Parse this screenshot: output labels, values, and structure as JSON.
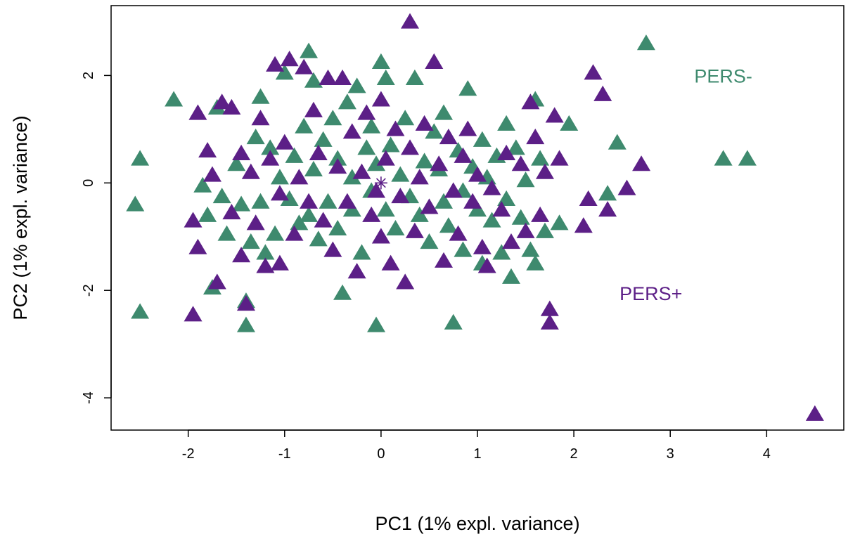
{
  "chart_data": {
    "type": "scatter",
    "xlabel": "PC1 (1% expl. variance)",
    "ylabel": "PC2 (1% expl. variance)",
    "xlim": [
      -2.8,
      4.8
    ],
    "ylim": [
      -4.6,
      3.3
    ],
    "xticks": [
      -2,
      -1,
      0,
      1,
      2,
      3,
      4
    ],
    "yticks": [
      -4,
      -2,
      0,
      2
    ],
    "grid": false,
    "legend": "none",
    "colors": {
      "pers_minus": "#3e8a6e",
      "pers_plus": "#5c1f87"
    },
    "annotations": [
      {
        "text": "PERS-",
        "x": 3.55,
        "y": 2.0,
        "color": "#3e8a6e"
      },
      {
        "text": "PERS+",
        "x": 2.8,
        "y": -2.05,
        "color": "#5c1f87"
      }
    ],
    "centroid": {
      "x": 0.0,
      "y": 0.0,
      "color": "#5c1f87"
    },
    "series": [
      {
        "color": "#3e8a6e",
        "marker": "triangle",
        "points": [
          [
            -2.55,
            -0.4
          ],
          [
            -2.5,
            0.45
          ],
          [
            -2.5,
            -2.4
          ],
          [
            -2.15,
            1.55
          ],
          [
            -1.85,
            -0.05
          ],
          [
            -1.8,
            -0.6
          ],
          [
            -1.75,
            -1.95
          ],
          [
            -1.7,
            1.4
          ],
          [
            -1.65,
            -0.25
          ],
          [
            -1.6,
            -0.95
          ],
          [
            -1.5,
            0.35
          ],
          [
            -1.45,
            -0.4
          ],
          [
            -1.4,
            -2.2
          ],
          [
            -1.4,
            -2.65
          ],
          [
            -1.35,
            -1.1
          ],
          [
            -1.3,
            0.85
          ],
          [
            -1.25,
            1.6
          ],
          [
            -1.25,
            -0.35
          ],
          [
            -1.2,
            -1.3
          ],
          [
            -1.15,
            0.65
          ],
          [
            -1.1,
            -0.95
          ],
          [
            -1.05,
            0.1
          ],
          [
            -1.0,
            2.05
          ],
          [
            -0.95,
            -0.3
          ],
          [
            -0.9,
            0.5
          ],
          [
            -0.85,
            -0.75
          ],
          [
            -0.8,
            1.05
          ],
          [
            -0.75,
            2.45
          ],
          [
            -0.75,
            -0.6
          ],
          [
            -0.7,
            0.25
          ],
          [
            -0.7,
            1.9
          ],
          [
            -0.65,
            -1.05
          ],
          [
            -0.6,
            0.8
          ],
          [
            -0.55,
            -0.35
          ],
          [
            -0.5,
            1.2
          ],
          [
            -0.45,
            -0.85
          ],
          [
            -0.45,
            0.45
          ],
          [
            -0.4,
            -2.05
          ],
          [
            -0.35,
            1.5
          ],
          [
            -0.3,
            -0.5
          ],
          [
            -0.3,
            0.1
          ],
          [
            -0.25,
            1.8
          ],
          [
            -0.2,
            -1.3
          ],
          [
            -0.15,
            0.65
          ],
          [
            -0.1,
            -0.15
          ],
          [
            -0.1,
            1.05
          ],
          [
            -0.05,
            0.35
          ],
          [
            0.0,
            2.25
          ],
          [
            -0.05,
            -2.65
          ],
          [
            0.05,
            -0.5
          ],
          [
            0.05,
            1.95
          ],
          [
            0.1,
            0.7
          ],
          [
            0.15,
            -0.85
          ],
          [
            0.2,
            0.15
          ],
          [
            0.25,
            1.2
          ],
          [
            0.3,
            -0.25
          ],
          [
            0.35,
            1.95
          ],
          [
            0.4,
            -0.6
          ],
          [
            0.45,
            0.4
          ],
          [
            0.5,
            -1.1
          ],
          [
            0.55,
            0.95
          ],
          [
            0.6,
            0.25
          ],
          [
            0.65,
            -0.35
          ],
          [
            0.65,
            1.3
          ],
          [
            0.7,
            -0.8
          ],
          [
            0.75,
            -2.6
          ],
          [
            0.8,
            0.6
          ],
          [
            0.85,
            -0.15
          ],
          [
            0.85,
            -1.25
          ],
          [
            0.9,
            1.75
          ],
          [
            0.95,
            0.3
          ],
          [
            1.0,
            -0.5
          ],
          [
            1.05,
            -1.5
          ],
          [
            1.05,
            0.8
          ],
          [
            1.1,
            0.1
          ],
          [
            1.15,
            -0.7
          ],
          [
            1.2,
            0.5
          ],
          [
            1.25,
            -1.3
          ],
          [
            1.3,
            -0.3
          ],
          [
            1.3,
            1.1
          ],
          [
            1.35,
            -1.75
          ],
          [
            1.4,
            0.65
          ],
          [
            1.45,
            -0.65
          ],
          [
            1.5,
            0.05
          ],
          [
            1.55,
            -1.25
          ],
          [
            1.6,
            -1.5
          ],
          [
            1.6,
            1.55
          ],
          [
            1.65,
            0.45
          ],
          [
            1.7,
            -0.9
          ],
          [
            1.85,
            -0.75
          ],
          [
            1.95,
            1.1
          ],
          [
            2.35,
            -0.2
          ],
          [
            2.45,
            0.75
          ],
          [
            2.75,
            2.6
          ],
          [
            3.55,
            0.45
          ],
          [
            3.8,
            0.45
          ]
        ]
      },
      {
        "color": "#5c1f87",
        "marker": "triangle",
        "points": [
          [
            -1.95,
            -2.45
          ],
          [
            -1.95,
            -0.7
          ],
          [
            -1.9,
            -1.2
          ],
          [
            -1.9,
            1.3
          ],
          [
            -1.8,
            0.6
          ],
          [
            -1.75,
            0.15
          ],
          [
            -1.7,
            -1.85
          ],
          [
            -1.65,
            1.5
          ],
          [
            -1.55,
            -0.55
          ],
          [
            -1.55,
            1.4
          ],
          [
            -1.45,
            0.55
          ],
          [
            -1.45,
            -1.35
          ],
          [
            -1.4,
            -2.25
          ],
          [
            -1.35,
            0.2
          ],
          [
            -1.3,
            -0.75
          ],
          [
            -1.25,
            1.2
          ],
          [
            -1.2,
            -1.55
          ],
          [
            -1.15,
            0.45
          ],
          [
            -1.1,
            2.2
          ],
          [
            -1.05,
            -0.2
          ],
          [
            -1.05,
            -1.5
          ],
          [
            -1.0,
            0.75
          ],
          [
            -0.95,
            2.3
          ],
          [
            -0.9,
            -0.95
          ],
          [
            -0.85,
            0.1
          ],
          [
            -0.8,
            2.15
          ],
          [
            -0.75,
            -0.35
          ],
          [
            -0.7,
            1.35
          ],
          [
            -0.65,
            0.55
          ],
          [
            -0.6,
            -0.7
          ],
          [
            -0.55,
            1.95
          ],
          [
            -0.5,
            -1.25
          ],
          [
            -0.45,
            0.3
          ],
          [
            -0.4,
            1.95
          ],
          [
            -0.35,
            -0.35
          ],
          [
            -0.3,
            0.95
          ],
          [
            -0.25,
            -1.65
          ],
          [
            -0.2,
            0.2
          ],
          [
            -0.15,
            1.3
          ],
          [
            -0.1,
            -0.6
          ],
          [
            -0.05,
            -0.15
          ],
          [
            0.0,
            1.55
          ],
          [
            0.0,
            -1.0
          ],
          [
            0.05,
            0.45
          ],
          [
            0.1,
            -1.5
          ],
          [
            0.15,
            1.0
          ],
          [
            0.2,
            -0.25
          ],
          [
            0.25,
            -1.85
          ],
          [
            0.3,
            3.0
          ],
          [
            0.3,
            0.65
          ],
          [
            0.35,
            -0.9
          ],
          [
            0.4,
            0.1
          ],
          [
            0.45,
            1.1
          ],
          [
            0.5,
            -0.45
          ],
          [
            0.55,
            2.25
          ],
          [
            0.6,
            0.35
          ],
          [
            0.65,
            -1.45
          ],
          [
            0.7,
            0.85
          ],
          [
            0.75,
            -0.15
          ],
          [
            0.8,
            -0.95
          ],
          [
            0.85,
            0.5
          ],
          [
            0.9,
            1.0
          ],
          [
            0.95,
            -0.35
          ],
          [
            1.0,
            0.15
          ],
          [
            1.05,
            -1.2
          ],
          [
            1.1,
            -1.55
          ],
          [
            1.15,
            -0.1
          ],
          [
            1.25,
            -0.5
          ],
          [
            1.3,
            0.55
          ],
          [
            1.35,
            -1.1
          ],
          [
            1.45,
            0.35
          ],
          [
            1.5,
            -0.9
          ],
          [
            1.55,
            1.5
          ],
          [
            1.6,
            0.85
          ],
          [
            1.65,
            -0.6
          ],
          [
            1.7,
            0.2
          ],
          [
            1.75,
            -2.35
          ],
          [
            1.75,
            -2.6
          ],
          [
            1.8,
            1.25
          ],
          [
            1.85,
            0.45
          ],
          [
            2.1,
            -0.8
          ],
          [
            2.15,
            -0.3
          ],
          [
            2.2,
            2.05
          ],
          [
            2.3,
            1.65
          ],
          [
            2.35,
            -0.5
          ],
          [
            2.55,
            -0.1
          ],
          [
            2.7,
            0.35
          ],
          [
            4.5,
            -4.3
          ]
        ]
      }
    ]
  }
}
